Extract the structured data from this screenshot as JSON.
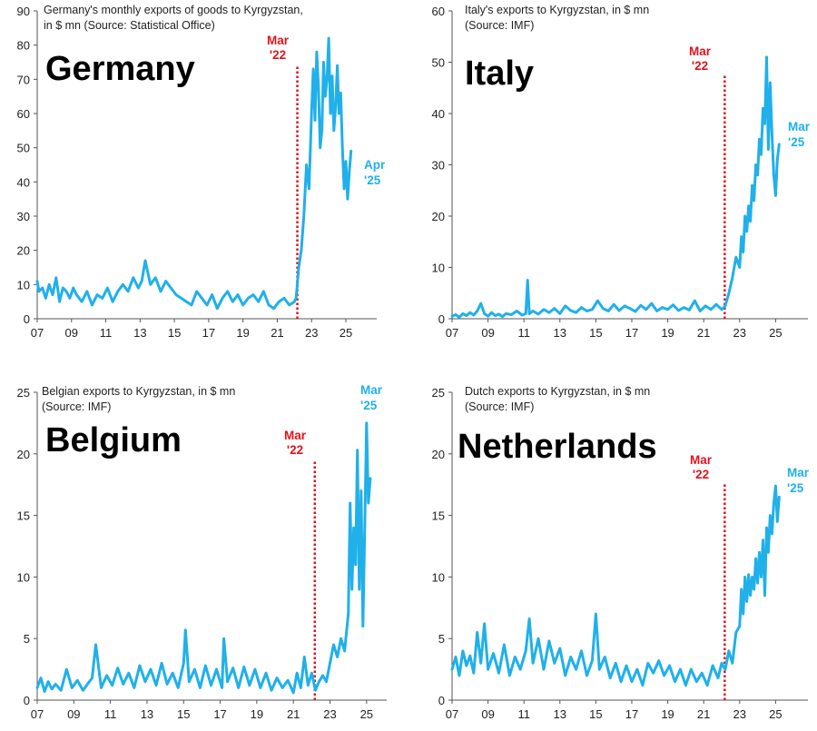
{
  "colors": {
    "series": "#20b0ea",
    "marker": "#e0141e",
    "axis": "#555555",
    "text": "#222222"
  },
  "chart_data": [
    {
      "type": "line",
      "country": "Germany",
      "subtitle": [
        "Germany's monthly exports of goods to Kyrgyzstan,",
        "in $ mn (Source: Statistical Office)"
      ],
      "ylim": [
        0,
        90
      ],
      "yticks": [
        0,
        10,
        20,
        30,
        40,
        50,
        60,
        70,
        80,
        90
      ],
      "xlim": [
        2007,
        2026.8
      ],
      "xticks": [
        "07",
        "09",
        "11",
        "13",
        "15",
        "17",
        "19",
        "21",
        "23",
        "25"
      ],
      "marker": {
        "x": 2022.17,
        "label": [
          "Mar",
          "'22"
        ]
      },
      "end_label": [
        "Apr",
        "'25"
      ],
      "series": [
        {
          "x": [
            2007.0,
            2007.1,
            2007.3,
            2007.5,
            2007.7,
            2007.9,
            2008.1,
            2008.3,
            2008.5,
            2008.7,
            2008.9,
            2009.1,
            2009.3,
            2009.6,
            2009.9,
            2010.2,
            2010.5,
            2010.8,
            2011.1,
            2011.4,
            2011.7,
            2012.0,
            2012.3,
            2012.6,
            2012.9,
            2013.1,
            2013.3,
            2013.6,
            2013.9,
            2014.2,
            2014.5,
            2014.8,
            2015.1,
            2015.4,
            2015.7,
            2016.0,
            2016.3,
            2016.6,
            2016.9,
            2017.2,
            2017.5,
            2017.8,
            2018.1,
            2018.4,
            2018.7,
            2019.0,
            2019.3,
            2019.6,
            2019.9,
            2020.2,
            2020.5,
            2020.8,
            2021.1,
            2021.4,
            2021.7,
            2022.0,
            2022.1,
            2022.25,
            2022.4,
            2022.55,
            2022.7,
            2022.85,
            2023.0,
            2023.1,
            2023.2,
            2023.3,
            2023.4,
            2023.5,
            2023.6,
            2023.7,
            2023.8,
            2023.9,
            2024.0,
            2024.1,
            2024.2,
            2024.3,
            2024.4,
            2024.5,
            2024.6,
            2024.7,
            2024.8,
            2024.9,
            2025.0,
            2025.1,
            2025.2,
            2025.3
          ],
          "values": [
            11,
            8,
            9,
            6,
            10,
            7,
            12,
            5,
            9,
            8,
            6,
            9,
            7,
            5,
            8,
            4,
            7,
            6,
            9,
            5,
            8,
            10,
            8,
            12,
            9,
            11,
            17,
            10,
            12,
            8,
            11,
            9,
            7,
            6,
            5,
            4,
            8,
            6,
            4,
            7,
            3,
            6,
            8,
            5,
            7,
            4,
            6,
            7,
            5,
            8,
            4,
            3,
            5,
            6,
            4,
            5,
            6,
            15,
            20,
            30,
            45,
            38,
            60,
            73,
            58,
            78,
            68,
            50,
            55,
            75,
            65,
            70,
            82,
            60,
            71,
            55,
            62,
            74,
            60,
            66,
            50,
            38,
            46,
            35,
            43,
            49
          ]
        }
      ]
    },
    {
      "type": "line",
      "country": "Italy",
      "subtitle": [
        "Italy's exports to Kyrgyzstan, in $ mn",
        "(Source: IMF)"
      ],
      "ylim": [
        0,
        60
      ],
      "yticks": [
        0,
        10,
        20,
        30,
        40,
        50,
        60
      ],
      "xlim": [
        2007,
        2026.8
      ],
      "xticks": [
        "07",
        "09",
        "11",
        "13",
        "15",
        "17",
        "19",
        "21",
        "23",
        "25"
      ],
      "marker": {
        "x": 2022.17,
        "label": [
          "Mar",
          "'22"
        ]
      },
      "end_label": [
        "Mar",
        "'25"
      ],
      "series": [
        {
          "x": [
            2007.0,
            2007.2,
            2007.4,
            2007.6,
            2007.8,
            2008.0,
            2008.2,
            2008.4,
            2008.6,
            2008.8,
            2009.0,
            2009.2,
            2009.4,
            2009.6,
            2009.8,
            2010.0,
            2010.3,
            2010.6,
            2010.9,
            2011.1,
            2011.2,
            2011.3,
            2011.5,
            2011.8,
            2012.1,
            2012.4,
            2012.7,
            2013.0,
            2013.3,
            2013.6,
            2013.9,
            2014.2,
            2014.5,
            2014.8,
            2015.1,
            2015.4,
            2015.7,
            2016.0,
            2016.3,
            2016.6,
            2016.9,
            2017.2,
            2017.5,
            2017.8,
            2018.1,
            2018.4,
            2018.7,
            2019.0,
            2019.3,
            2019.6,
            2019.9,
            2020.2,
            2020.5,
            2020.8,
            2021.1,
            2021.4,
            2021.7,
            2022.0,
            2022.2,
            2022.4,
            2022.6,
            2022.8,
            2023.0,
            2023.1,
            2023.2,
            2023.3,
            2023.4,
            2023.5,
            2023.6,
            2023.7,
            2023.8,
            2023.9,
            2024.0,
            2024.1,
            2024.2,
            2024.3,
            2024.4,
            2024.5,
            2024.6,
            2024.7,
            2024.8,
            2024.9,
            2025.0,
            2025.1,
            2025.2
          ],
          "values": [
            0.5,
            0.8,
            0.3,
            1.0,
            0.6,
            1.2,
            0.7,
            1.5,
            3.0,
            1.0,
            0.5,
            1.2,
            0.6,
            0.9,
            0.4,
            1.0,
            0.8,
            1.5,
            0.7,
            1.0,
            7.5,
            1.0,
            1.5,
            0.9,
            1.8,
            1.2,
            2.0,
            1.0,
            2.5,
            1.6,
            1.2,
            2.2,
            1.5,
            1.8,
            3.5,
            2.0,
            1.5,
            2.8,
            1.6,
            2.5,
            2.0,
            1.4,
            2.6,
            1.8,
            3.0,
            1.5,
            2.2,
            1.8,
            2.7,
            1.6,
            2.2,
            1.7,
            3.5,
            1.5,
            2.5,
            1.8,
            2.8,
            1.8,
            2.5,
            5.0,
            8.0,
            12.0,
            10.0,
            16.0,
            13.0,
            20.0,
            17.0,
            22.0,
            19.0,
            26.0,
            23.0,
            30.0,
            28.0,
            35.0,
            32.0,
            41.0,
            38.0,
            51.0,
            33.0,
            46.0,
            36.0,
            28.0,
            24.0,
            31.0,
            34.0
          ]
        }
      ]
    },
    {
      "type": "line",
      "country": "Belgium",
      "subtitle": [
        "Belgian exports to Kyrgyzstan, in $ mn",
        "(Source: IMF)"
      ],
      "ylim": [
        0,
        25
      ],
      "yticks": [
        0,
        5,
        10,
        15,
        20,
        25
      ],
      "xlim": [
        2007,
        2026.1
      ],
      "xticks": [
        "07",
        "09",
        "11",
        "13",
        "15",
        "17",
        "19",
        "21",
        "23",
        "25"
      ],
      "marker": {
        "x": 2022.17,
        "label": [
          "Mar",
          "'22"
        ]
      },
      "end_label": [
        "Mar",
        "'25"
      ],
      "series": [
        {
          "x": [
            2007.0,
            2007.2,
            2007.4,
            2007.6,
            2007.8,
            2008.0,
            2008.3,
            2008.6,
            2008.9,
            2009.2,
            2009.5,
            2009.8,
            2010.0,
            2010.2,
            2010.5,
            2010.8,
            2011.1,
            2011.4,
            2011.7,
            2012.0,
            2012.3,
            2012.6,
            2012.9,
            2013.2,
            2013.5,
            2013.8,
            2014.1,
            2014.4,
            2014.7,
            2015.0,
            2015.1,
            2015.3,
            2015.6,
            2015.9,
            2016.2,
            2016.5,
            2016.8,
            2017.1,
            2017.2,
            2017.4,
            2017.7,
            2018.0,
            2018.3,
            2018.6,
            2018.9,
            2019.2,
            2019.5,
            2019.8,
            2020.1,
            2020.4,
            2020.7,
            2021.0,
            2021.2,
            2021.4,
            2021.6,
            2021.8,
            2022.0,
            2022.2,
            2022.4,
            2022.6,
            2022.8,
            2023.0,
            2023.2,
            2023.4,
            2023.6,
            2023.8,
            2024.0,
            2024.1,
            2024.2,
            2024.3,
            2024.4,
            2024.5,
            2024.6,
            2024.7,
            2024.8,
            2024.9,
            2025.0,
            2025.1,
            2025.2
          ],
          "values": [
            1.0,
            1.8,
            0.7,
            1.5,
            0.9,
            1.3,
            0.8,
            2.5,
            1.0,
            1.6,
            0.8,
            1.4,
            1.8,
            4.5,
            1.0,
            2.0,
            1.2,
            2.6,
            1.3,
            2.2,
            1.0,
            2.8,
            1.5,
            2.5,
            1.2,
            3.0,
            1.3,
            2.2,
            1.0,
            3.0,
            5.7,
            1.5,
            2.5,
            1.0,
            2.8,
            1.2,
            2.5,
            1.0,
            5.0,
            1.5,
            2.6,
            1.0,
            2.7,
            1.2,
            2.5,
            1.0,
            2.2,
            0.8,
            1.8,
            1.0,
            1.6,
            0.6,
            2.2,
            1.0,
            3.5,
            1.2,
            2.2,
            0.8,
            1.5,
            2.0,
            1.5,
            3.0,
            4.5,
            3.5,
            5.0,
            4.0,
            7.0,
            16.0,
            9.0,
            14.0,
            11.0,
            20.3,
            9.0,
            17.0,
            6.0,
            14.0,
            22.5,
            16.0,
            18.0
          ]
        }
      ]
    },
    {
      "type": "line",
      "country": "Netherlands",
      "subtitle": [
        "Dutch exports to Kyrgyzstan, in $ mn",
        "(Source: IMF)"
      ],
      "ylim": [
        0,
        25
      ],
      "yticks": [
        0,
        5,
        10,
        15,
        20,
        25
      ],
      "xlim": [
        2007,
        2026.8
      ],
      "xticks": [
        "07",
        "09",
        "11",
        "13",
        "15",
        "17",
        "19",
        "21",
        "23",
        "25"
      ],
      "marker": {
        "x": 2022.17,
        "label": [
          "Mar",
          "'22"
        ]
      },
      "end_label": [
        "Mar",
        "'25"
      ],
      "series": [
        {
          "x": [
            2007.0,
            2007.2,
            2007.4,
            2007.6,
            2007.8,
            2008.0,
            2008.2,
            2008.4,
            2008.6,
            2008.8,
            2009.0,
            2009.3,
            2009.6,
            2009.9,
            2010.2,
            2010.5,
            2010.8,
            2011.1,
            2011.3,
            2011.5,
            2011.8,
            2012.1,
            2012.4,
            2012.7,
            2013.0,
            2013.3,
            2013.6,
            2013.9,
            2014.2,
            2014.5,
            2014.8,
            2015.0,
            2015.2,
            2015.5,
            2015.8,
            2016.1,
            2016.4,
            2016.7,
            2017.0,
            2017.3,
            2017.6,
            2017.9,
            2018.2,
            2018.5,
            2018.8,
            2019.1,
            2019.4,
            2019.7,
            2020.0,
            2020.3,
            2020.6,
            2020.9,
            2021.2,
            2021.5,
            2021.8,
            2022.0,
            2022.2,
            2022.4,
            2022.6,
            2022.8,
            2023.0,
            2023.1,
            2023.2,
            2023.3,
            2023.4,
            2023.5,
            2023.6,
            2023.7,
            2023.8,
            2023.9,
            2024.0,
            2024.1,
            2024.2,
            2024.3,
            2024.4,
            2024.5,
            2024.6,
            2024.7,
            2024.8,
            2024.9,
            2025.0,
            2025.1,
            2025.2
          ],
          "values": [
            2.5,
            3.5,
            2.0,
            4.0,
            2.8,
            3.6,
            2.2,
            5.5,
            3.0,
            6.2,
            2.5,
            3.8,
            2.2,
            4.5,
            2.0,
            3.5,
            2.5,
            4.0,
            6.6,
            3.0,
            5.0,
            2.5,
            4.8,
            3.0,
            4.2,
            2.0,
            3.5,
            2.5,
            4.0,
            2.0,
            3.2,
            7.0,
            2.5,
            3.5,
            1.8,
            3.0,
            1.5,
            2.8,
            1.5,
            2.5,
            1.2,
            3.0,
            2.2,
            3.2,
            2.0,
            2.8,
            1.5,
            2.5,
            1.2,
            2.5,
            1.5,
            2.2,
            1.2,
            2.8,
            1.8,
            3.0,
            2.5,
            4.0,
            3.0,
            5.5,
            6.0,
            9.0,
            7.0,
            10.0,
            8.0,
            10.2,
            8.5,
            10.0,
            9.0,
            11.5,
            9.5,
            12.0,
            10.0,
            13.0,
            8.5,
            14.0,
            12.0,
            15.0,
            13.5,
            16.0,
            17.4,
            14.5,
            16.5
          ]
        }
      ]
    }
  ]
}
